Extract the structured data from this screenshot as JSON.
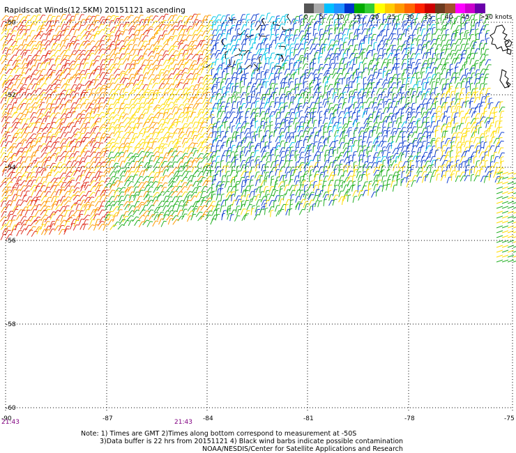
{
  "title": "Rapidscat Winds(12.5KM) 20151121 ascending",
  "colorbar": {
    "colors": [
      "#555555",
      "#aaaaaa",
      "#00bfff",
      "#1e90ff",
      "#0033cc",
      "#00aa00",
      "#33cc33",
      "#ffff00",
      "#ffcc00",
      "#ff9900",
      "#ff6600",
      "#ff2200",
      "#cc0000",
      "#6b3a1e",
      "#a0522d",
      "#ff00ff",
      "#cc00cc",
      "#6a00aa"
    ],
    "labels": [
      "0",
      "5",
      "10",
      "15",
      "20",
      "25",
      "30",
      "35",
      "40",
      "45",
      ">50 knots"
    ]
  },
  "map": {
    "lat_labels": [
      "-50",
      "-52",
      "-54",
      "-56",
      "-58",
      "-60"
    ],
    "lon_labels": [
      "-90",
      "-87",
      "-84",
      "-81",
      "-78",
      "-75"
    ],
    "time_labels": [
      "21:43",
      "21:43"
    ],
    "wind_colors": {
      "red": "#e03020",
      "orange": "#ff9900",
      "yellow": "#ffdd00",
      "green": "#22b022",
      "blue": "#1040d0",
      "cyan": "#00c8e8",
      "black": "#000000"
    }
  },
  "notes": {
    "line1": "Note: 1) Times are GMT 2)Times along bottom correspond to measurement at -50S",
    "line2": "3)Data buffer is 22 hrs from 20151121 4) Black wind barbs indicate possible contamination",
    "line3": "NOAA/NESDIS/Center for Satellite Applications and Research"
  }
}
